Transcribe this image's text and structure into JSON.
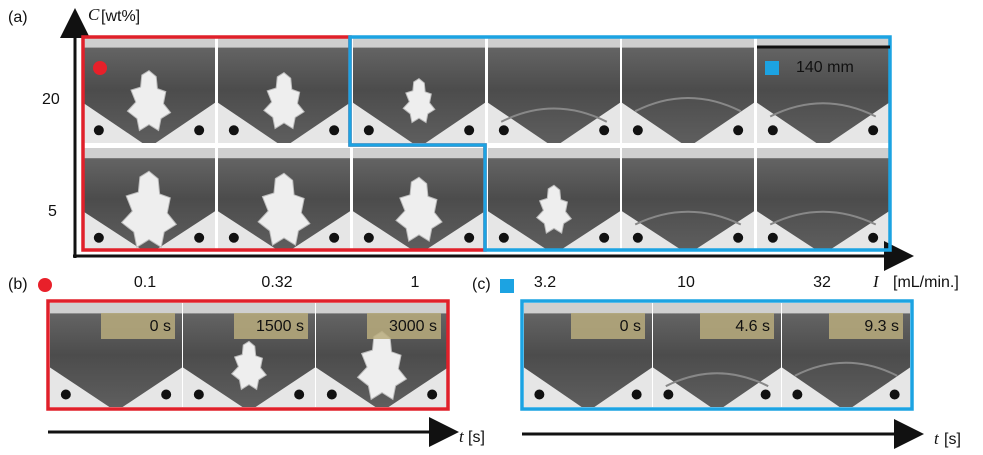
{
  "panel_a": {
    "label": "(a)",
    "y_axis_label": {
      "symbol": "C",
      "unit": "[wt%]"
    },
    "y_ticks": [
      "20",
      "5"
    ],
    "x_ticks": [
      "0.1",
      "0.32",
      "1",
      "3.2",
      "10",
      "32"
    ],
    "x_axis_label": {
      "symbol": "I",
      "unit": "[mL/min.]"
    },
    "scale_bar": "140 mm"
  },
  "panel_b": {
    "label": "(b)",
    "frames": [
      "0 s",
      "1500 s",
      "3000 s"
    ],
    "time_axis": {
      "symbol": "t",
      "unit": "[s]"
    }
  },
  "panel_c": {
    "label": "(c)",
    "frames": [
      "0 s",
      "4.6 s",
      "9.3 s"
    ],
    "time_axis": {
      "symbol": "t",
      "unit": "[s]"
    }
  }
}
